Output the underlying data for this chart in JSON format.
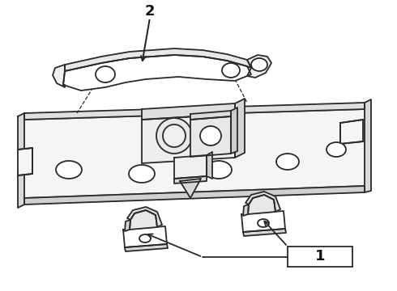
{
  "bg_color": "#ffffff",
  "line_color": "#2a2a2a",
  "line_width": 1.3,
  "label1": "1",
  "label2": "2",
  "figsize": [
    4.9,
    3.6
  ],
  "dpi": 100
}
